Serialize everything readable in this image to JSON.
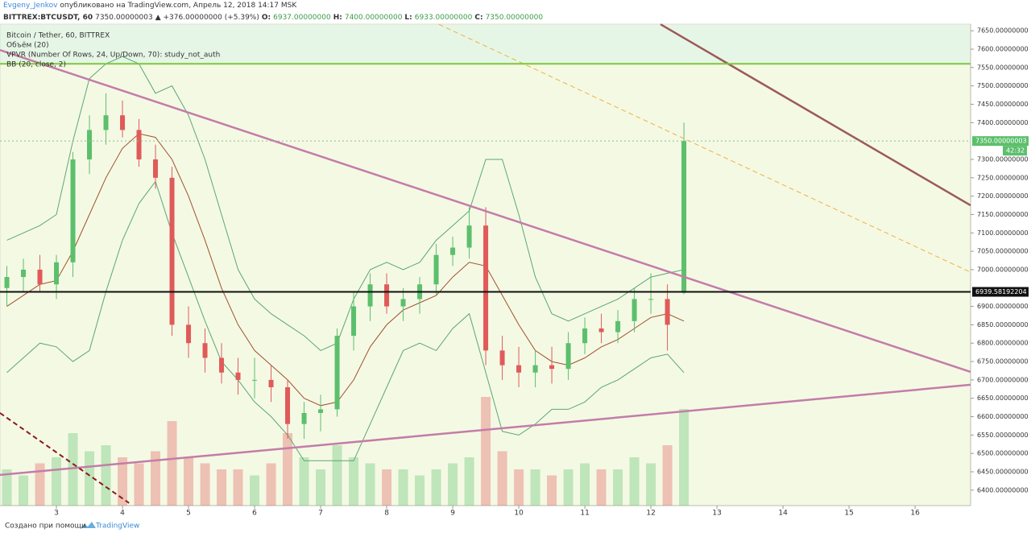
{
  "header": {
    "author": "Evgeny_Jenkov",
    "published": "опубликовано на TradingView.com, Апрель 12, 2018 14:17 MSK",
    "symbol": "BITTREX:BTCUSDT, 60",
    "last": "7350.00000003",
    "change": "▲ +376.00000000 (+5.39%)",
    "o_label": "O:",
    "o": "6937.00000000",
    "h_label": "H:",
    "h": "7400.00000000",
    "l_label": "L:",
    "l": "6933.00000000",
    "c_label": "C:",
    "c": "7350.00000000"
  },
  "footer": {
    "text": "Создано при помощи",
    "brand": "TradingView"
  },
  "chart_data": {
    "type": "candlestick",
    "legend": [
      "Bitcoin / Tether, 60, BITTREX",
      "Объём (20)",
      "VPVR (Number Of Rows, 24, Up/Down, 70): study_not_auth",
      "BB (20, close, 2)"
    ],
    "xlim": [
      2.146,
      16.84
    ],
    "xticks": [
      3,
      4,
      5,
      6,
      7,
      8,
      9,
      10,
      11,
      12,
      13,
      14,
      15,
      16
    ],
    "ylim": [
      6358,
      7668
    ],
    "yticks": [
      {
        "value": 6400,
        "label": "6400.00000000"
      },
      {
        "value": 6450,
        "label": "6450.00000000"
      },
      {
        "value": 6500,
        "label": "6500.00000000"
      },
      {
        "value": 6550,
        "label": "6550.00000000"
      },
      {
        "value": 6600,
        "label": "6600.00000000"
      },
      {
        "value": 6650,
        "label": "6650.00000000"
      },
      {
        "value": 6700,
        "label": "6700.00000000"
      },
      {
        "value": 6750,
        "label": "6750.00000000"
      },
      {
        "value": 6800,
        "label": "6800.00000000"
      },
      {
        "value": 6850,
        "label": "6850.00000000"
      },
      {
        "value": 6900,
        "label": "6900.00000000"
      },
      {
        "value": 7000,
        "label": "7000.00000000"
      },
      {
        "value": 7050,
        "label": "7050.00000000"
      },
      {
        "value": 7100,
        "label": "7100.00000000"
      },
      {
        "value": 7150,
        "label": "7150.00000000"
      },
      {
        "value": 7200,
        "label": "7200.00000000"
      },
      {
        "value": 7250,
        "label": "7250.00000000"
      },
      {
        "value": 7300,
        "label": "7300.00000000"
      },
      {
        "value": 7400,
        "label": "7400.00000000"
      },
      {
        "value": 7450,
        "label": "7450.00000000"
      },
      {
        "value": 7500,
        "label": "7500.00000000"
      },
      {
        "value": 7550,
        "label": "7550.00000000"
      },
      {
        "value": 7600,
        "label": "7600.00000000"
      },
      {
        "value": 7650,
        "label": "7650.00000000"
      }
    ],
    "up_color": "#5cbf6c",
    "down_color": "#e05a5a",
    "x": [
      2.25,
      2.5,
      2.75,
      3,
      3.25,
      3.5,
      3.75,
      4,
      4.25,
      4.5,
      4.75,
      5,
      5.25,
      5.5,
      5.75,
      6,
      6.25,
      6.5,
      6.75,
      7,
      7.25,
      7.5,
      7.75,
      8,
      8.25,
      8.5,
      8.75,
      9,
      9.25,
      9.5,
      9.75,
      10,
      10.25,
      10.5,
      10.75,
      11,
      11.25,
      11.5,
      11.75,
      12,
      12.25,
      12.5
    ],
    "open": [
      6950,
      6980,
      7000,
      6960,
      7020,
      7300,
      7380,
      7420,
      7380,
      7300,
      7250,
      6850,
      6800,
      6760,
      6720,
      6700,
      6700,
      6680,
      6580,
      6610,
      6620,
      6820,
      6900,
      6960,
      6900,
      6920,
      6960,
      7040,
      7060,
      7120,
      6780,
      6740,
      6720,
      6740,
      6730,
      6800,
      6840,
      6830,
      6860,
      6920,
      6920,
      6937
    ],
    "high": [
      7010,
      7030,
      7040,
      7040,
      7320,
      7420,
      7480,
      7460,
      7410,
      7340,
      7280,
      6900,
      6840,
      6800,
      6760,
      6760,
      6740,
      6700,
      6640,
      6660,
      6840,
      6940,
      6990,
      6990,
      6950,
      6980,
      7070,
      7090,
      7170,
      7170,
      6820,
      6790,
      6780,
      6790,
      6830,
      6870,
      6880,
      6890,
      6950,
      6990,
      6960,
      7400
    ],
    "low": [
      6900,
      6940,
      6940,
      6920,
      6980,
      7260,
      7340,
      7360,
      7280,
      7220,
      6820,
      6760,
      6720,
      6690,
      6660,
      6650,
      6640,
      6540,
      6540,
      6560,
      6600,
      6780,
      6860,
      6880,
      6860,
      6880,
      6930,
      7010,
      7030,
      6740,
      6700,
      6680,
      6680,
      6690,
      6700,
      6770,
      6800,
      6800,
      6830,
      6880,
      6780,
      6933
    ],
    "close": [
      6980,
      7000,
      6960,
      7020,
      7300,
      7380,
      7420,
      7380,
      7300,
      7250,
      6850,
      6800,
      6760,
      6720,
      6700,
      6700,
      6680,
      6580,
      6610,
      6620,
      6820,
      6900,
      6960,
      6900,
      6920,
      6960,
      7040,
      7060,
      7120,
      6780,
      6740,
      6720,
      6740,
      6730,
      6800,
      6840,
      6830,
      6860,
      6920,
      6920,
      6850,
      7350
    ],
    "volume": {
      "lim": [
        0,
        100
      ],
      "values": [
        30,
        25,
        35,
        40,
        60,
        45,
        50,
        40,
        35,
        45,
        70,
        40,
        35,
        30,
        30,
        25,
        35,
        60,
        40,
        30,
        50,
        40,
        35,
        30,
        30,
        25,
        30,
        35,
        40,
        90,
        45,
        30,
        30,
        25,
        30,
        35,
        30,
        30,
        40,
        35,
        50,
        80
      ]
    },
    "bollinger": {
      "color": "#5aa872",
      "mid_color": "#a0522d",
      "mid": [
        6900,
        6930,
        6960,
        6970,
        7050,
        7150,
        7250,
        7330,
        7370,
        7360,
        7300,
        7200,
        7080,
        6950,
        6850,
        6780,
        6740,
        6700,
        6650,
        6630,
        6640,
        6700,
        6790,
        6850,
        6890,
        6910,
        6930,
        6980,
        7020,
        7010,
        6930,
        6850,
        6780,
        6750,
        6740,
        6760,
        6790,
        6810,
        6840,
        6870,
        6880,
        6860
      ],
      "upper": [
        7080,
        7100,
        7120,
        7150,
        7350,
        7520,
        7560,
        7580,
        7560,
        7480,
        7500,
        7420,
        7300,
        7150,
        7000,
        6920,
        6880,
        6850,
        6820,
        6780,
        6800,
        6920,
        7000,
        7020,
        7000,
        7020,
        7080,
        7120,
        7160,
        7300,
        7300,
        7150,
        6980,
        6880,
        6860,
        6880,
        6900,
        6920,
        6950,
        6980,
        6990,
        7000
      ],
      "lower": [
        6720,
        6760,
        6800,
        6790,
        6750,
        6780,
        6940,
        7080,
        7180,
        7240,
        7100,
        6980,
        6860,
        6750,
        6700,
        6640,
        6600,
        6550,
        6480,
        6480,
        6480,
        6480,
        6580,
        6680,
        6780,
        6800,
        6780,
        6840,
        6880,
        6720,
        6560,
        6550,
        6580,
        6620,
        6620,
        6640,
        6680,
        6700,
        6730,
        6760,
        6770,
        6720
      ]
    },
    "hlines": [
      {
        "value": 7560,
        "color": "#7cc83a",
        "width": 2,
        "style": "solid"
      },
      {
        "value": 7350,
        "color": "#8cbf8c",
        "width": 1,
        "style": "dotted",
        "label": "7350.00000003",
        "sublabel": "42:32",
        "label_color": "#5cbf6c"
      },
      {
        "value": 6939.58,
        "color": "#111111",
        "width": 2,
        "style": "solid",
        "label": "6939.58192204",
        "label_color": "#111111"
      }
    ],
    "trendlines": [
      {
        "x": [
          2.146,
          16.84
        ],
        "y": [
          7597.5,
          6721.8
        ],
        "color": "#c47ca8",
        "width": 2.5,
        "style": "solid"
      },
      {
        "x": [
          2.146,
          16.84
        ],
        "y": [
          6441.6,
          6686.8
        ],
        "color": "#c47ca8",
        "width": 2.5,
        "style": "solid"
      },
      {
        "x": [
          12.146,
          16.84
        ],
        "y": [
          7667.5,
          7175
        ],
        "color": "#9c5a5a",
        "width": 2.5,
        "style": "solid"
      },
      {
        "x": [
          8.79,
          16.84
        ],
        "y": [
          7667.5,
          6993
        ],
        "color": "#f0b040",
        "width": 1,
        "style": "dashed"
      },
      {
        "x": [
          2.146,
          4.1
        ],
        "y": [
          6610,
          6365
        ],
        "color": "#8b1a1a",
        "width": 2,
        "style": "dashed"
      }
    ]
  }
}
